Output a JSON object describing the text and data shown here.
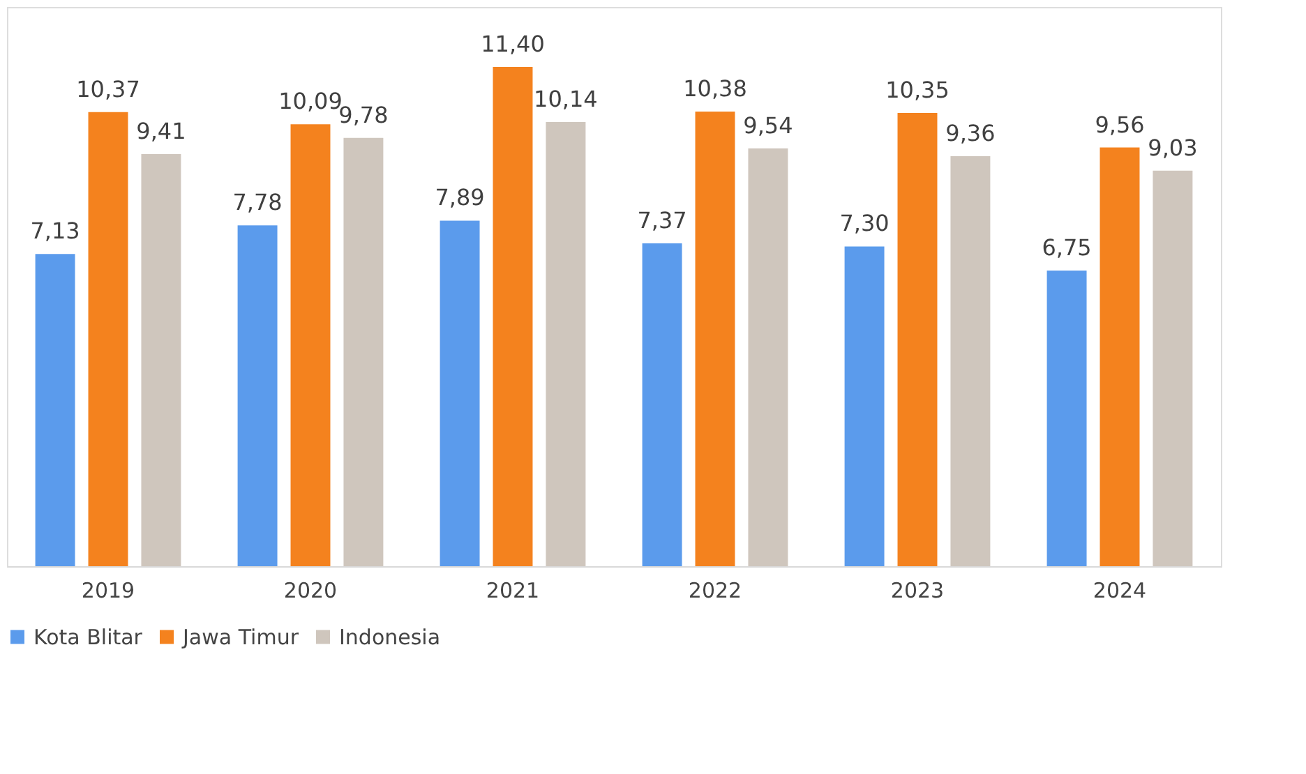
{
  "chart_data": {
    "type": "bar",
    "categories": [
      "2019",
      "2020",
      "2021",
      "2022",
      "2023",
      "2024"
    ],
    "series": [
      {
        "name": "Kota Blitar",
        "color": "#5b9bec",
        "values": [
          7.13,
          7.78,
          7.89,
          7.37,
          7.3,
          6.75
        ],
        "value_labels": [
          "7,13",
          "7,78",
          "7,89",
          "7,37",
          "7,30",
          "6,75"
        ]
      },
      {
        "name": "Jawa Timur",
        "color": "#f4821e",
        "values": [
          10.37,
          10.09,
          11.4,
          10.38,
          10.35,
          9.56
        ],
        "value_labels": [
          "10,37",
          "10,09",
          "11,40",
          "10,38",
          "10,35",
          "9,56"
        ]
      },
      {
        "name": "Indonesia",
        "color": "#cfc6bd",
        "values": [
          9.41,
          9.78,
          10.14,
          9.54,
          9.36,
          9.03
        ],
        "value_labels": [
          "9,41",
          "9,78",
          "10,14",
          "9,54",
          "9,36",
          "9,03"
        ]
      }
    ],
    "legend": "bottom"
  }
}
